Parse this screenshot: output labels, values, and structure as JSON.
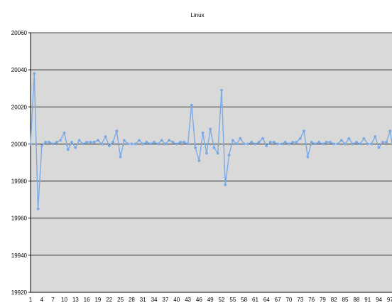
{
  "chart_data": {
    "type": "line",
    "title": "Linux",
    "xlabel": "",
    "ylabel": "",
    "ylim": [
      19920,
      20060
    ],
    "yticks": [
      19920,
      19940,
      19960,
      19980,
      20000,
      20020,
      20040,
      20060
    ],
    "xticks": [
      1,
      4,
      7,
      10,
      13,
      16,
      19,
      22,
      25,
      28,
      31,
      34,
      37,
      40,
      43,
      46,
      49,
      52,
      55,
      58,
      61,
      64,
      67,
      70,
      73,
      76,
      79,
      82,
      85,
      88,
      91,
      94,
      97
    ],
    "x": [
      1,
      2,
      3,
      4,
      5,
      6,
      7,
      8,
      9,
      10,
      11,
      12,
      13,
      14,
      15,
      16,
      17,
      18,
      19,
      20,
      21,
      22,
      23,
      24,
      25,
      26,
      27,
      28,
      29,
      30,
      31,
      32,
      33,
      34,
      35,
      36,
      37,
      38,
      39,
      40,
      41,
      42,
      43,
      44,
      45,
      46,
      47,
      48,
      49,
      50,
      51,
      52,
      53,
      54,
      55,
      56,
      57,
      58,
      59,
      60,
      61,
      62,
      63,
      64,
      65,
      66,
      67,
      68,
      69,
      70,
      71,
      72,
      73,
      74,
      75,
      76,
      77,
      78,
      79,
      80,
      81,
      82,
      83,
      84,
      85,
      86,
      87,
      88,
      89,
      90,
      91,
      92,
      93,
      94,
      95,
      96,
      97,
      98,
      99
    ],
    "series": [
      {
        "name": "",
        "color": "#7aaae6",
        "values": [
          20000,
          20038,
          19965,
          19999,
          20001,
          20001,
          20000,
          20001,
          20002,
          20006,
          19997,
          20001,
          19998,
          20002,
          20000,
          20001,
          20001,
          20001,
          20002,
          20000,
          20004,
          19999,
          20001,
          20007,
          19993,
          20002,
          20000,
          20000,
          20000,
          20002,
          20000,
          20001,
          20000,
          20001,
          20000,
          20002,
          20000,
          20002,
          20001,
          20000,
          20001,
          20001,
          20000,
          20021,
          19998,
          19991,
          20006,
          19995,
          20008,
          19998,
          19995,
          20029,
          19978,
          19994,
          20002,
          20000,
          20003,
          20000,
          20000,
          20001,
          20000,
          20001,
          20003,
          19999,
          20001,
          20001,
          20000,
          20000,
          20001,
          20000,
          20001,
          20001,
          20003,
          20007,
          19993,
          20001,
          20000,
          20001,
          20000,
          20001,
          20001,
          20000,
          20000,
          20002,
          20000,
          20003,
          20000,
          20001,
          20000,
          20003,
          20000,
          20000,
          20004,
          19998,
          20001,
          20001,
          20007,
          19994,
          20004
        ]
      }
    ],
    "grid": true,
    "legend": "none",
    "plot_background": "#d9d9d9",
    "gridline_color": "#000000"
  }
}
